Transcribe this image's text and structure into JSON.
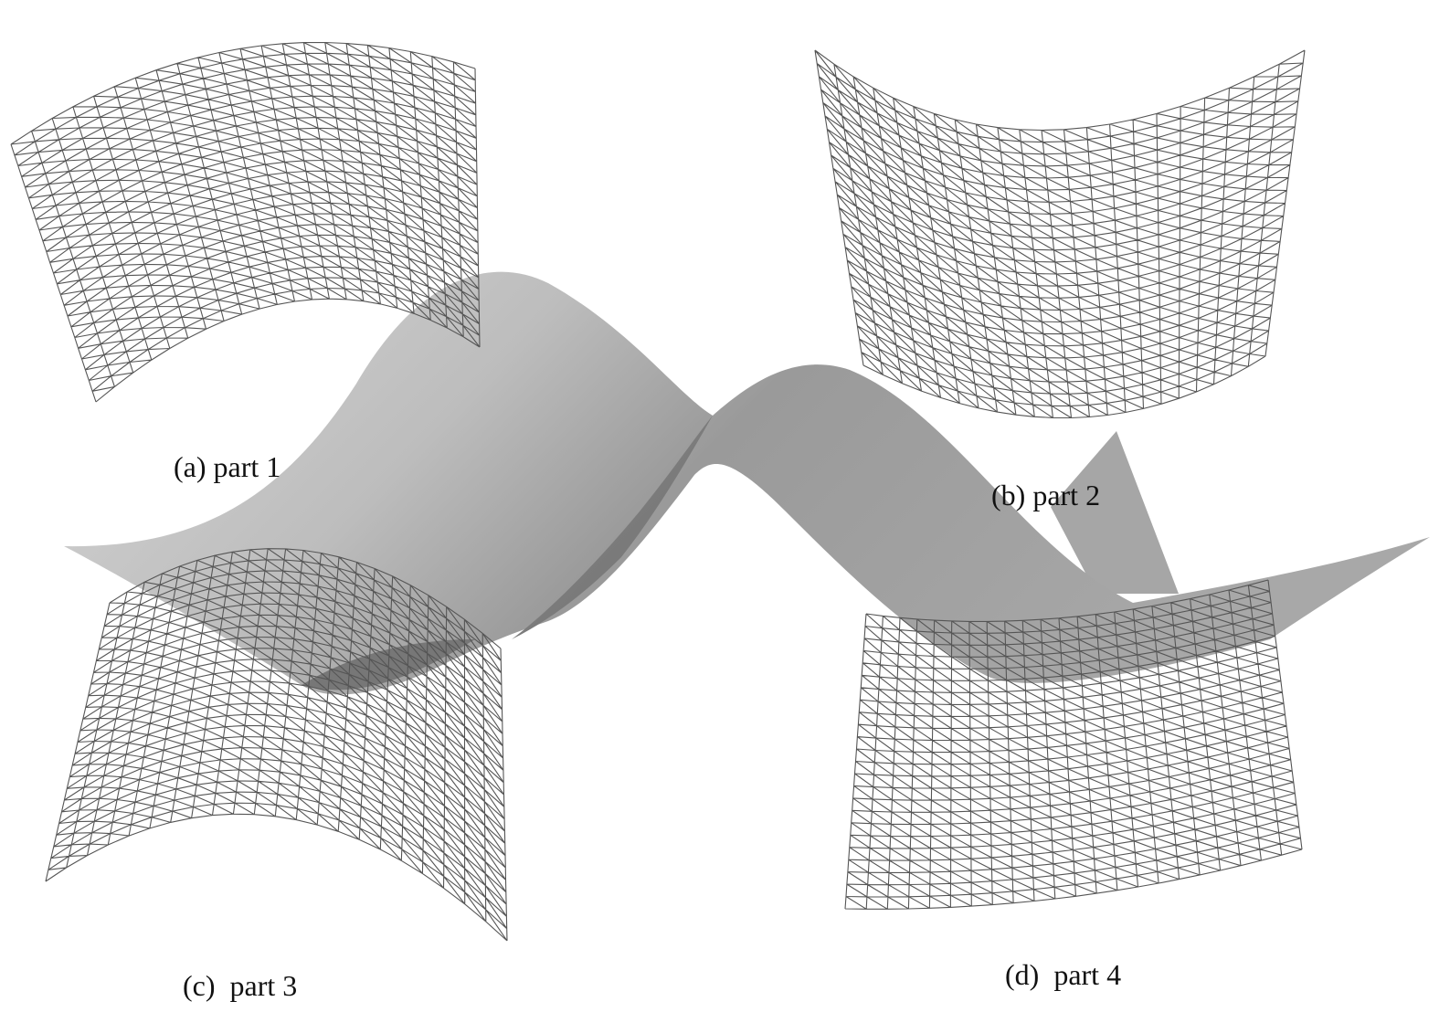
{
  "labels": [
    "(a) part 1",
    "(b) part 2",
    "(c)  part 3",
    "(d)  part 4"
  ]
}
